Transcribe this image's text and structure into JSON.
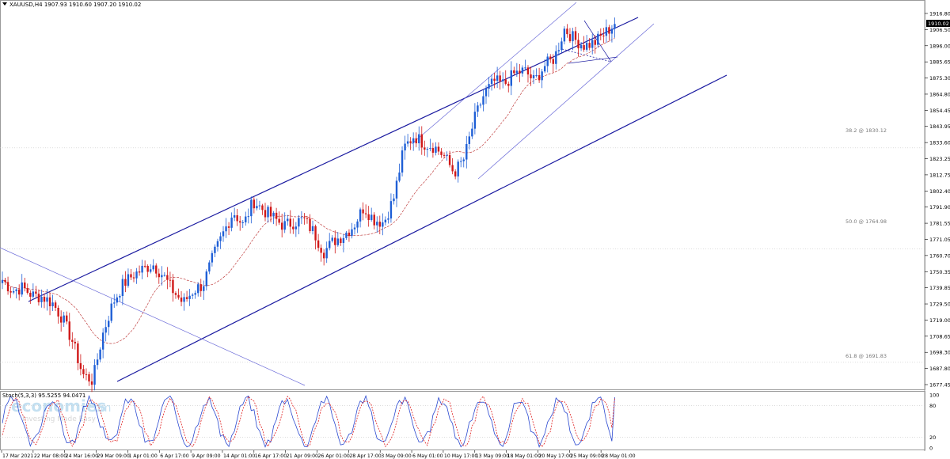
{
  "chart": {
    "symbol_line": "XAUUSD,H4  1907.93 1910.60 1907.20 1910.02",
    "current_price_tag": "1910.02",
    "fib_382": "38.2 @ 1830.12",
    "fib_500": "50.0 @ 1764.98",
    "fib_618": "61.8 @ 1691.83",
    "watermark_main": "economies",
    "watermark_com": ".com",
    "watermark_sub": "Investing Made Easy",
    "stoch_label": "Stoch(5,3,3) 95.5255 94.0471",
    "stoch_levels": [
      "100",
      "80",
      "20",
      "0"
    ],
    "price_axis": [
      "1916.80",
      "1906.50",
      "1896.00",
      "1885.65",
      "1875.30",
      "1864.80",
      "1854.45",
      "1843.95",
      "1833.60",
      "1823.25",
      "1812.75",
      "1802.40",
      "1791.90",
      "1781.55",
      "1771.05",
      "1760.70",
      "1750.35",
      "1739.85",
      "1729.50",
      "1719.00",
      "1708.65",
      "1698.30",
      "1687.80",
      "1677.45"
    ],
    "time_axis": [
      "17 Mar 2021",
      "22 Mar 08:00",
      "24 Mar 16:00",
      "29 Mar 09:00",
      "1 Apr 01:00",
      "6 Apr 17:00",
      "9 Apr 09:00",
      "14 Apr 01:00",
      "16 Apr 17:00",
      "21 Apr 09:00",
      "26 Apr 01:00",
      "28 Apr 17:00",
      "3 May 09:00",
      "6 May 01:00",
      "10 May 17:00",
      "13 May 09:00",
      "18 May 01:00",
      "20 May 17:00",
      "25 May 09:00",
      "28 May 01:00"
    ],
    "colors": {
      "bull": "#1f5fd6",
      "bear": "#d01818",
      "channel": "#1a1aa0",
      "ma": "#c04040",
      "stoch_main": "#2a48d0",
      "stoch_signal": "#e02020",
      "grid": "#c8c8c8",
      "price_tag_bg": "#000000"
    }
  },
  "chart_data": {
    "type": "candlestick",
    "symbol": "XAUUSD",
    "timeframe": "H4",
    "ohlc_last": {
      "open": 1907.93,
      "high": 1910.6,
      "low": 1907.2,
      "close": 1910.02
    },
    "ylim": [
      1672,
      1922
    ],
    "path_closes": [
      1745,
      1738,
      1740,
      1735,
      1734,
      1730,
      1720,
      1705,
      1684,
      1680,
      1710,
      1730,
      1742,
      1748,
      1752,
      1755,
      1748,
      1738,
      1730,
      1738,
      1742,
      1760,
      1775,
      1789,
      1780,
      1796,
      1790,
      1785,
      1780,
      1782,
      1784,
      1776,
      1763,
      1770,
      1774,
      1780,
      1792,
      1784,
      1782,
      1798,
      1830,
      1838,
      1833,
      1831,
      1825,
      1814,
      1823,
      1848,
      1865,
      1873,
      1871,
      1878,
      1880,
      1873,
      1883,
      1888,
      1907,
      1900,
      1896,
      1898,
      1904,
      1910
    ],
    "fibonacci": [
      {
        "level": "38.2",
        "price": 1830.12
      },
      {
        "level": "50.0",
        "price": 1764.98
      },
      {
        "level": "61.8",
        "price": 1691.83
      }
    ],
    "stochastic": {
      "params": "5,3,3",
      "main_last": 95.5255,
      "signal_last": 94.0471,
      "levels": [
        100,
        80,
        20,
        0
      ]
    }
  }
}
